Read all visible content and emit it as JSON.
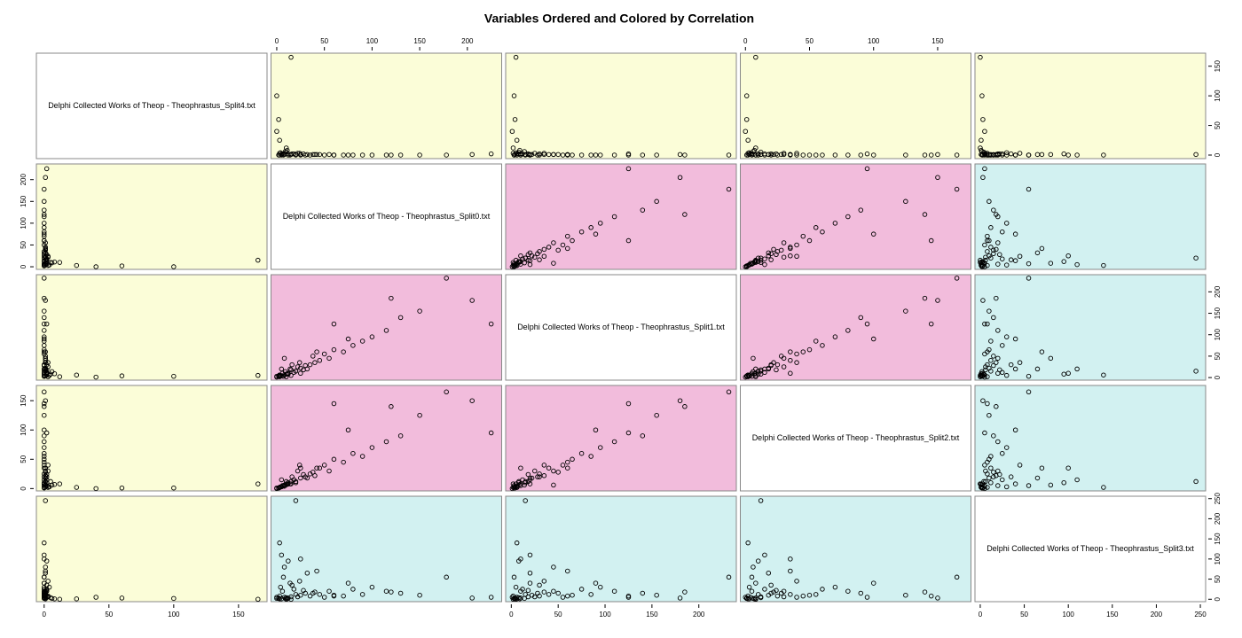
{
  "chart_data": {
    "type": "scatter-matrix",
    "title": "Variables Ordered and Colored by Correlation",
    "variables": [
      {
        "name": "Delphi Collected Works of Theop - Theophrastus_Split4.txt",
        "lim": [
          -6,
          172
        ],
        "ticks": [
          0,
          50,
          100,
          150
        ]
      },
      {
        "name": "Delphi Collected Works of Theop - Theophrastus_Split0.txt",
        "lim": [
          -6,
          236
        ],
        "ticks": [
          0,
          50,
          100,
          150,
          200
        ]
      },
      {
        "name": "Delphi Collected Works of Theop - Theophrastus_Split1.txt",
        "lim": [
          -6,
          240
        ],
        "ticks": [
          0,
          50,
          100,
          150,
          200
        ]
      },
      {
        "name": "Delphi Collected Works of Theop - Theophrastus_Split2.txt",
        "lim": [
          -4,
          176
        ],
        "ticks": [
          0,
          50,
          100,
          150
        ]
      },
      {
        "name": "Delphi Collected Works of Theop - Theophrastus_Split3.txt",
        "lim": [
          -6,
          256
        ],
        "ticks": [
          0,
          50,
          100,
          150,
          200,
          250
        ]
      }
    ],
    "panel_colors": [
      [
        "#ffffff",
        "#fbfdd8",
        "#fbfdd8",
        "#fbfdd8",
        "#fbfdd8"
      ],
      [
        "#fbfdd8",
        "#ffffff",
        "#f2bcdc",
        "#f2bcdc",
        "#d2f1f1"
      ],
      [
        "#fbfdd8",
        "#f2bcdc",
        "#ffffff",
        "#f2bcdc",
        "#d2f1f1"
      ],
      [
        "#fbfdd8",
        "#f2bcdc",
        "#f2bcdc",
        "#ffffff",
        "#d2f1f1"
      ],
      [
        "#fbfdd8",
        "#d2f1f1",
        "#d2f1f1",
        "#d2f1f1",
        "#ffffff"
      ]
    ],
    "point_color": "#000000",
    "observations": [
      [
        0,
        2,
        3,
        1,
        2
      ],
      [
        1,
        5,
        4,
        3,
        1
      ],
      [
        2,
        8,
        6,
        4,
        5
      ],
      [
        0,
        12,
        10,
        8,
        3
      ],
      [
        3,
        3,
        2,
        2,
        8
      ],
      [
        1,
        15,
        18,
        12,
        6
      ],
      [
        0,
        20,
        15,
        10,
        12
      ],
      [
        2,
        6,
        10,
        5,
        20
      ],
      [
        5,
        10,
        8,
        12,
        4
      ],
      [
        1,
        25,
        22,
        18,
        10
      ],
      [
        0,
        30,
        28,
        20,
        15
      ],
      [
        4,
        4,
        5,
        3,
        30
      ],
      [
        2,
        18,
        12,
        15,
        25
      ],
      [
        0,
        35,
        30,
        25,
        8
      ],
      [
        6,
        9,
        14,
        6,
        2
      ],
      [
        1,
        40,
        35,
        22,
        18
      ],
      [
        3,
        22,
        25,
        30,
        6
      ],
      [
        0,
        14,
        20,
        8,
        40
      ],
      [
        2,
        28,
        18,
        24,
        22
      ],
      [
        1,
        45,
        40,
        35,
        12
      ],
      [
        0,
        7,
        3,
        5,
        55
      ],
      [
        8,
        11,
        9,
        7,
        1
      ],
      [
        0,
        50,
        55,
        40,
        5
      ],
      [
        1,
        55,
        45,
        30,
        20
      ],
      [
        0,
        60,
        65,
        50,
        10
      ],
      [
        2,
        16,
        30,
        20,
        35
      ],
      [
        0,
        70,
        60,
        45,
        8
      ],
      [
        1,
        38,
        50,
        28,
        15
      ],
      [
        0,
        80,
        75,
        60,
        25
      ],
      [
        3,
        24,
        35,
        40,
        45
      ],
      [
        0,
        90,
        85,
        55,
        12
      ],
      [
        1,
        32,
        20,
        18,
        65
      ],
      [
        0,
        100,
        95,
        70,
        30
      ],
      [
        2,
        12,
        8,
        10,
        95
      ],
      [
        0,
        115,
        110,
        80,
        20
      ],
      [
        0,
        3,
        6,
        2,
        140
      ],
      [
        1,
        20,
        15,
        12,
        245
      ],
      [
        0,
        130,
        140,
        90,
        15
      ],
      [
        0,
        75,
        90,
        100,
        40
      ],
      [
        1,
        42,
        60,
        35,
        70
      ],
      [
        165,
        15,
        5,
        8,
        0
      ],
      [
        60,
        2,
        4,
        1,
        3
      ],
      [
        40,
        0,
        1,
        0,
        5
      ],
      [
        25,
        3,
        6,
        2,
        1
      ],
      [
        12,
        10,
        2,
        8,
        0
      ],
      [
        100,
        0,
        3,
        1,
        2
      ],
      [
        2,
        225,
        125,
        95,
        5
      ],
      [
        1,
        205,
        180,
        150,
        3
      ],
      [
        0,
        178,
        232,
        165,
        55
      ],
      [
        0,
        150,
        155,
        125,
        10
      ],
      [
        0,
        120,
        185,
        140,
        18
      ],
      [
        0,
        60,
        125,
        145,
        8
      ],
      [
        0,
        25,
        10,
        35,
        100
      ],
      [
        1,
        8,
        45,
        6,
        80
      ],
      [
        0,
        5,
        20,
        15,
        110
      ]
    ]
  }
}
